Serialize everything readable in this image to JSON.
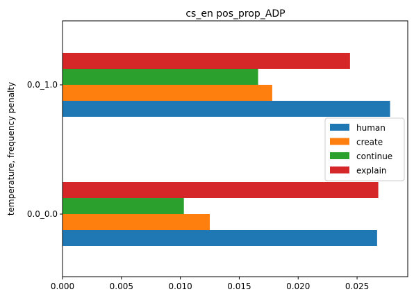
{
  "chart_data": {
    "type": "bar",
    "orientation": "horizontal",
    "title": "cs_en pos_prop_ADP",
    "xlabel": "",
    "ylabel": "temperature, frequency penalty",
    "categories": [
      "0.0_0.0",
      "0.0_1.0"
    ],
    "xlim": [
      0,
      0.0293
    ],
    "xticks": [
      "0.000",
      "0.005",
      "0.010",
      "0.015",
      "0.020",
      "0.025"
    ],
    "xtick_values": [
      0,
      0.005,
      0.01,
      0.015,
      0.02,
      0.025
    ],
    "series": [
      {
        "name": "human",
        "color": "#1f77b4",
        "values": [
          0.0267,
          0.0278
        ]
      },
      {
        "name": "create",
        "color": "#ff7f0e",
        "values": [
          0.0125,
          0.0178
        ]
      },
      {
        "name": "continue",
        "color": "#2ca02c",
        "values": [
          0.0103,
          0.0166
        ]
      },
      {
        "name": "explain",
        "color": "#d62728",
        "values": [
          0.0268,
          0.0244
        ]
      }
    ],
    "legend": "center-right",
    "grid": false
  }
}
